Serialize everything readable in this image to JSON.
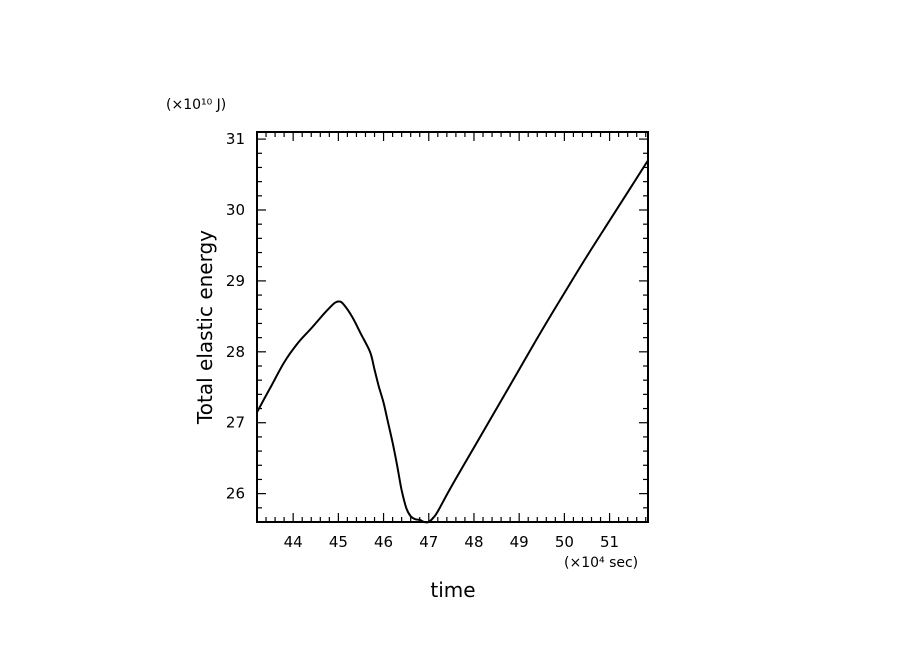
{
  "chart_data": {
    "type": "line",
    "title": "",
    "xlabel": "time",
    "ylabel": "Total elastic energy",
    "x_unit": "(×10⁴ sec)",
    "y_unit": "(×10¹⁰ J)",
    "xlim": [
      43.2,
      51.85
    ],
    "ylim": [
      25.6,
      31.1
    ],
    "xticks": [
      44,
      45,
      46,
      47,
      48,
      49,
      50,
      51
    ],
    "yticks": [
      26,
      27,
      28,
      29,
      30,
      31
    ],
    "grid": false,
    "legend": "none",
    "line_color": "#000000",
    "series": [
      {
        "x": [
          43.2,
          43.5,
          43.8,
          44.1,
          44.4,
          44.7,
          44.9,
          45.0,
          45.1,
          45.3,
          45.5,
          45.7,
          45.8,
          45.9,
          46.0,
          46.1,
          46.2,
          46.3,
          46.4,
          46.5,
          46.6,
          46.7,
          46.8,
          46.9,
          47.0,
          47.1,
          47.2,
          47.5,
          48.0,
          48.5,
          49.0,
          49.5,
          50.0,
          50.5,
          51.0,
          51.5,
          51.85
        ],
        "y": [
          27.15,
          27.5,
          27.85,
          28.12,
          28.33,
          28.55,
          28.68,
          28.71,
          28.68,
          28.5,
          28.25,
          28.0,
          27.75,
          27.5,
          27.28,
          27.0,
          26.72,
          26.4,
          26.05,
          25.8,
          25.68,
          25.64,
          25.63,
          25.6,
          25.6,
          25.66,
          25.75,
          26.1,
          26.65,
          27.2,
          27.75,
          28.3,
          28.83,
          29.35,
          29.85,
          30.35,
          30.7
        ]
      }
    ]
  }
}
